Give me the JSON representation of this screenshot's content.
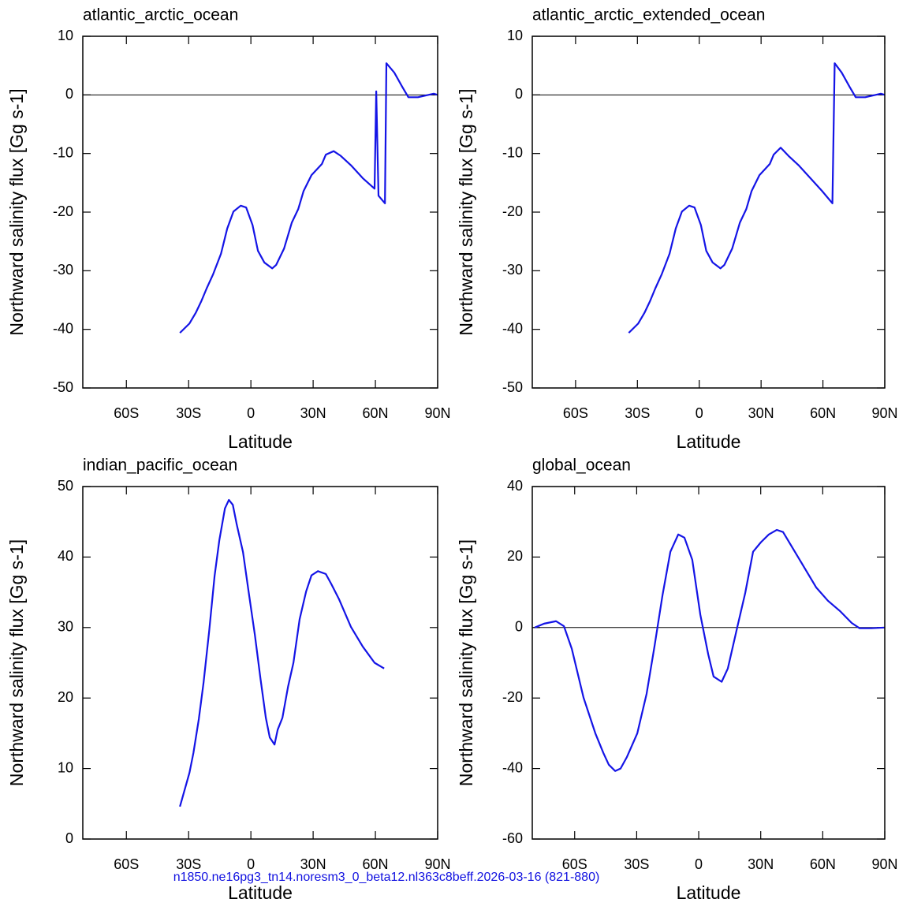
{
  "chart_data": [
    {
      "type": "line",
      "title": "atlantic_arctic_ocean",
      "x_label": "Latitude",
      "y_label": "Northward salinity flux [Gg s-1]",
      "xlim": [
        -81,
        90
      ],
      "ylim": [
        -50,
        10
      ],
      "xticks": [
        {
          "value": -60,
          "label": "60S"
        },
        {
          "value": -30,
          "label": "30S"
        },
        0,
        {
          "value": 30,
          "label": "30N"
        },
        {
          "value": 60,
          "label": "60N"
        },
        {
          "value": 90,
          "label": "90N"
        }
      ],
      "yticks": [
        -50,
        -40,
        -30,
        -20,
        -10,
        0,
        10
      ],
      "zero_line": true,
      "series": [
        {
          "color": "#1414e6",
          "x": [
            -34.2,
            -29.6,
            -26.6,
            -23.9,
            -21.3,
            -18.2,
            -14.4,
            -11.4,
            -8.4,
            -4.9,
            -2.3,
            0.8,
            3.4,
            6.5,
            10.3,
            12.2,
            16,
            19.7,
            22.8,
            25.4,
            29.2,
            34.2,
            36.1,
            39.9,
            43.3,
            48.2,
            53.9,
            59.6,
            60.4,
            61.5,
            64.6,
            65.3,
            69.1,
            72.9,
            75.9,
            80.5,
            84.3,
            88.1,
            90
          ],
          "values": [
            -40.6,
            -39,
            -37.2,
            -35.2,
            -33,
            -30.6,
            -27.1,
            -22.8,
            -19.9,
            -18.9,
            -19.2,
            -22.2,
            -26.6,
            -28.6,
            -29.6,
            -29,
            -26.2,
            -21.8,
            -19.5,
            -16.4,
            -13.7,
            -11.8,
            -10.2,
            -9.6,
            -10.4,
            -12,
            -14.2,
            -16,
            0.6,
            -17.2,
            -18.5,
            5.4,
            3.8,
            1.4,
            -0.4,
            -0.4,
            -0.1,
            0.2,
            0
          ]
        }
      ]
    },
    {
      "type": "line",
      "title": "atlantic_arctic_extended_ocean",
      "x_label": "Latitude",
      "y_label": "Northward salinity flux [Gg s-1]",
      "xlim": [
        -81,
        90
      ],
      "ylim": [
        -50,
        10
      ],
      "xticks": [
        {
          "value": -60,
          "label": "60S"
        },
        {
          "value": -30,
          "label": "30S"
        },
        0,
        {
          "value": 30,
          "label": "30N"
        },
        {
          "value": 60,
          "label": "60N"
        },
        {
          "value": 90,
          "label": "90N"
        }
      ],
      "yticks": [
        -50,
        -40,
        -30,
        -20,
        -10,
        0,
        10
      ],
      "zero_line": true,
      "series": [
        {
          "color": "#1414e6",
          "x": [
            -34.2,
            -29.6,
            -26.6,
            -23.9,
            -21.3,
            -18.2,
            -14.4,
            -11.4,
            -8.4,
            -4.9,
            -2.3,
            0.8,
            3.4,
            6.5,
            10.3,
            12.2,
            16,
            19.7,
            22.8,
            25.4,
            29.2,
            34.2,
            36.1,
            39.5,
            43.3,
            48.2,
            53.9,
            59.6,
            64.6,
            65.7,
            69.1,
            72.9,
            75.9,
            80.5,
            84.3,
            88.1,
            90
          ],
          "values": [
            -40.6,
            -39,
            -37.2,
            -35.2,
            -33,
            -30.6,
            -27.1,
            -22.8,
            -19.9,
            -18.9,
            -19.2,
            -22.2,
            -26.6,
            -28.6,
            -29.6,
            -29,
            -26.2,
            -21.8,
            -19.5,
            -16.4,
            -13.7,
            -11.8,
            -10.2,
            -9,
            -10.4,
            -12,
            -14.2,
            -16.4,
            -18.5,
            5.4,
            3.8,
            1.4,
            -0.4,
            -0.4,
            -0.1,
            0.2,
            0
          ]
        }
      ]
    },
    {
      "type": "line",
      "title": "indian_pacific_ocean",
      "x_label": "Latitude",
      "y_label": "Northward salinity flux [Gg s-1]",
      "xlim": [
        -81,
        90
      ],
      "ylim": [
        0,
        50
      ],
      "xticks": [
        {
          "value": -60,
          "label": "60S"
        },
        {
          "value": -30,
          "label": "30S"
        },
        0,
        {
          "value": 30,
          "label": "30N"
        },
        {
          "value": 60,
          "label": "60N"
        },
        {
          "value": 90,
          "label": "90N"
        }
      ],
      "yticks": [
        0,
        10,
        20,
        30,
        40,
        50
      ],
      "zero_line": false,
      "series": [
        {
          "color": "#1414e6",
          "x": [
            -34.2,
            -29.6,
            -27.7,
            -25.1,
            -22.8,
            -20.1,
            -17.5,
            -15.2,
            -12.5,
            -10.6,
            -8.7,
            -6.8,
            -3.8,
            -1.1,
            1.9,
            4.6,
            7.2,
            9.1,
            11.4,
            12.9,
            15.2,
            17.9,
            20.5,
            23.5,
            26.6,
            29.2,
            32.3,
            36.1,
            38.7,
            42.5,
            48.2,
            53.9,
            59.6,
            64.2
          ],
          "values": [
            4.6,
            9.4,
            12.2,
            17,
            22.2,
            29.5,
            37.3,
            42.4,
            46.9,
            48.1,
            47.4,
            44.6,
            40.7,
            35.1,
            29,
            22.8,
            17.2,
            14.4,
            13.4,
            15.5,
            17.2,
            21.6,
            25,
            31.2,
            35.1,
            37.4,
            38,
            37.6,
            36.2,
            34,
            30.1,
            27.3,
            25,
            24.2
          ]
        }
      ]
    },
    {
      "type": "line",
      "title": "global_ocean",
      "x_label": "Latitude",
      "y_label": "Northward salinity flux [Gg s-1]",
      "xlim": [
        -80.5,
        90
      ],
      "ylim": [
        -60,
        40
      ],
      "xticks": [
        {
          "value": -60,
          "label": "60S"
        },
        {
          "value": -30,
          "label": "30S"
        },
        0,
        {
          "value": 30,
          "label": "30N"
        },
        {
          "value": 60,
          "label": "60N"
        },
        {
          "value": 90,
          "label": "90N"
        }
      ],
      "yticks": [
        -60,
        -40,
        -20,
        0,
        20,
        40
      ],
      "zero_line": true,
      "series": [
        {
          "color": "#1414e6",
          "x": [
            -79.3,
            -74.8,
            -69,
            -65.2,
            -61.4,
            -55.7,
            -50,
            -46.1,
            -43.5,
            -40.4,
            -37.8,
            -34.7,
            -29.7,
            -25.2,
            -21.4,
            -17.5,
            -13.7,
            -9.9,
            -6.9,
            -3.1,
            0.8,
            4.6,
            7.2,
            11.1,
            14.1,
            18.7,
            22.5,
            26.3,
            30.1,
            33.9,
            37.8,
            40.8,
            45.4,
            51.1,
            56.8,
            62.5,
            68.3,
            74,
            77.8,
            83.5,
            90
          ],
          "values": [
            0,
            1.1,
            1.8,
            0.4,
            -6,
            -19.9,
            -30,
            -35.6,
            -38.9,
            -40.7,
            -40,
            -36.7,
            -30,
            -18.8,
            -5.4,
            9.2,
            21.5,
            26.4,
            25.5,
            19.2,
            3.6,
            -7.6,
            -13.9,
            -15.4,
            -11.6,
            0.2,
            9.8,
            21.5,
            24.2,
            26.4,
            27.7,
            27.1,
            22.6,
            17,
            11.4,
            7.6,
            4.7,
            1.3,
            -0.2,
            -0.2,
            0
          ]
        }
      ]
    }
  ],
  "footer": "n1850.ne16pg3_tn14.noresm3_0_beta12.nl363c8beff.2026-03-16 (821-880)"
}
